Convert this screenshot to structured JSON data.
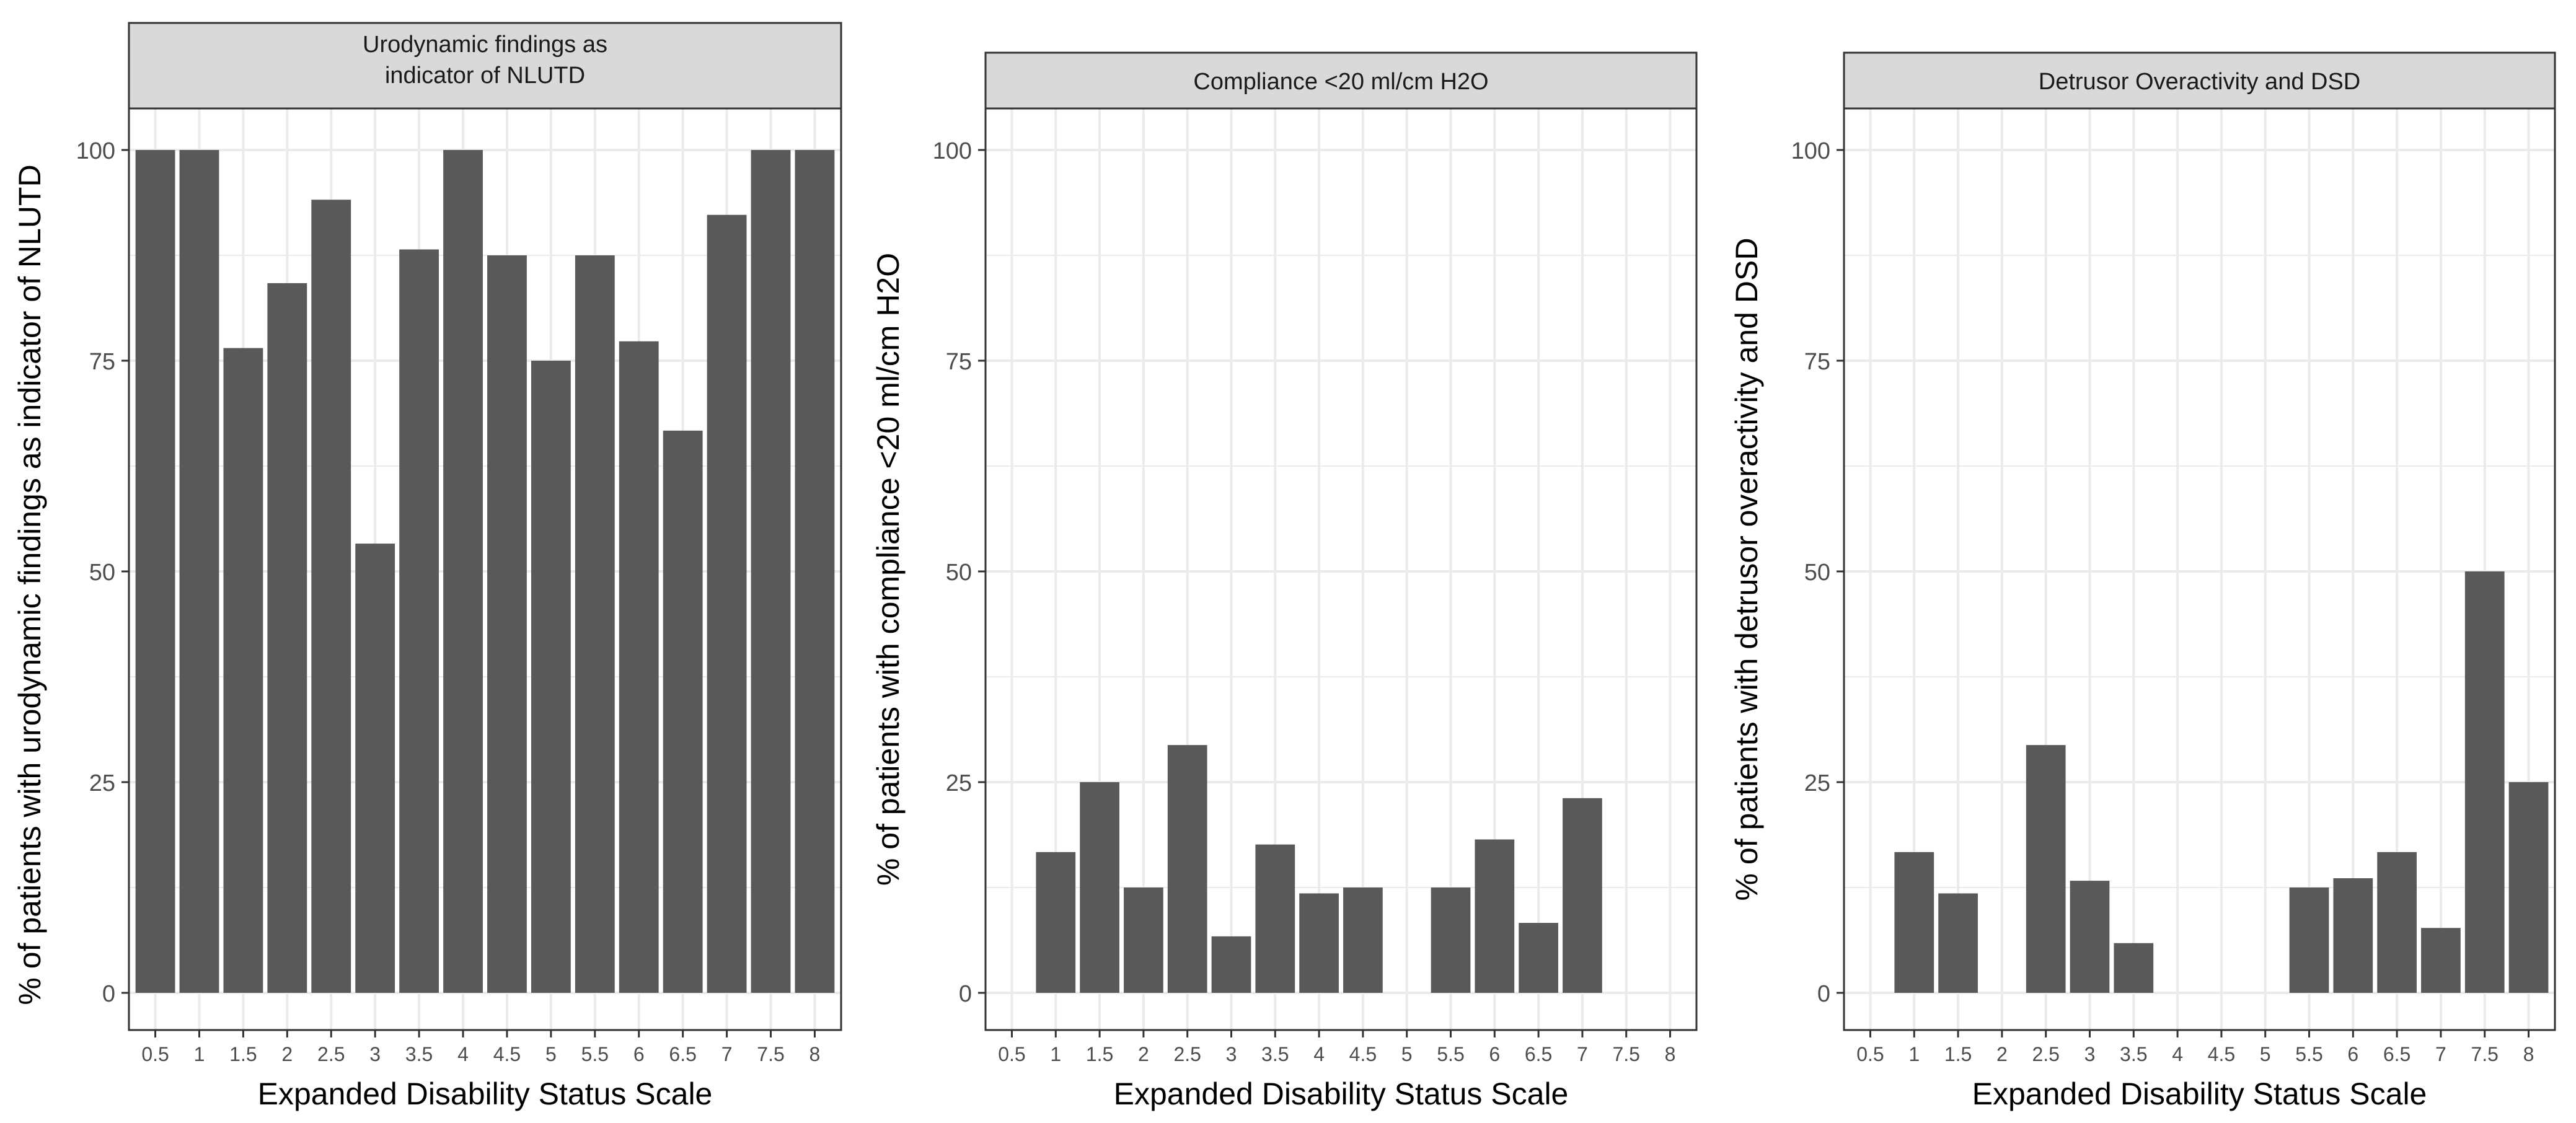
{
  "chart_data": [
    {
      "type": "bar",
      "title": "Urodynamic findings as\nindicator of NLUTD",
      "xlabel": "Expanded Disability Status Scale",
      "ylabel": "% of patients with urodynamic findings as indicator of NLUTD",
      "categories": [
        "0.5",
        "1",
        "1.5",
        "2",
        "2.5",
        "3",
        "3.5",
        "4",
        "4.5",
        "5",
        "5.5",
        "6",
        "6.5",
        "7",
        "7.5",
        "8"
      ],
      "values": [
        100,
        100,
        76.5,
        84.2,
        94.1,
        53.3,
        88.2,
        100,
        87.5,
        75,
        87.5,
        77.3,
        66.7,
        92.3,
        100,
        100
      ],
      "ylim": [
        0,
        100
      ],
      "yticks": [
        0,
        25,
        50,
        75,
        100
      ],
      "grid": true
    },
    {
      "type": "bar",
      "title": "Compliance <20 ml/cm H2O",
      "xlabel": "Expanded Disability Status Scale",
      "ylabel": "% of patients with compliance <20 ml/cm H2O",
      "categories": [
        "0.5",
        "1",
        "1.5",
        "2",
        "2.5",
        "3",
        "3.5",
        "4",
        "4.5",
        "5",
        "5.5",
        "6",
        "6.5",
        "7",
        "7.5",
        "8"
      ],
      "values": [
        0,
        16.7,
        25,
        12.5,
        29.4,
        6.7,
        17.6,
        11.8,
        12.5,
        0,
        12.5,
        18.2,
        8.3,
        23.1,
        0,
        0
      ],
      "ylim": [
        0,
        100
      ],
      "yticks": [
        0,
        25,
        50,
        75,
        100
      ],
      "grid": true
    },
    {
      "type": "bar",
      "title": "Detrusor Overactivity and DSD",
      "xlabel": "Expanded Disability Status Scale",
      "ylabel": "% of patients with detrusor overactivity and DSD",
      "categories": [
        "0.5",
        "1",
        "1.5",
        "2",
        "2.5",
        "3",
        "3.5",
        "4",
        "4.5",
        "5",
        "5.5",
        "6",
        "6.5",
        "7",
        "7.5",
        "8"
      ],
      "values": [
        0,
        16.7,
        11.8,
        0,
        29.4,
        13.3,
        5.9,
        0,
        0,
        0,
        12.5,
        13.6,
        16.7,
        7.7,
        50,
        25
      ],
      "ylim": [
        0,
        100
      ],
      "yticks": [
        0,
        25,
        50,
        75,
        100
      ],
      "grid": true
    }
  ],
  "colors": {
    "bar": "#595959",
    "grid": "#ebebeb",
    "strip_fill": "#d9d9d9",
    "panel_border": "#333333",
    "tick_text": "#4d4d4d",
    "axis_text": "#000000"
  }
}
